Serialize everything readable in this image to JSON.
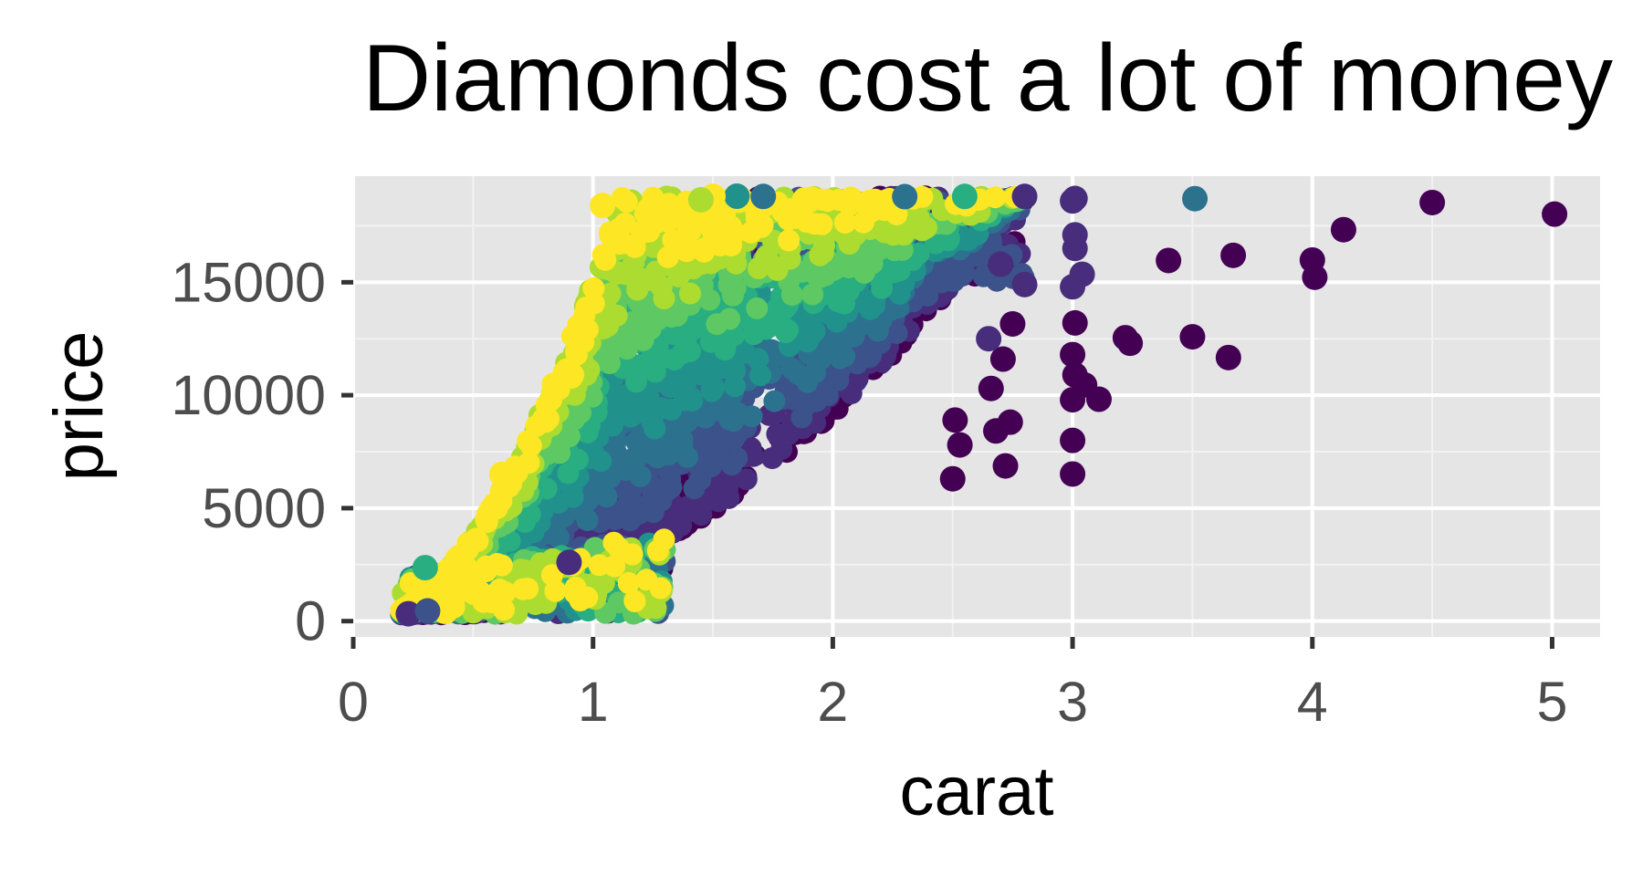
{
  "chart_data": {
    "type": "scatter",
    "title": "Diamonds cost a lot of money",
    "xlabel": "carat",
    "ylabel": "price",
    "xlim": [
      0,
      5.2
    ],
    "ylim": [
      -700,
      19700
    ],
    "x_ticks": [
      0,
      1,
      2,
      3,
      4,
      5
    ],
    "y_ticks": [
      0,
      5000,
      10000,
      15000
    ],
    "x_tick_labels": [
      "0",
      "1",
      "2",
      "3",
      "4",
      "5"
    ],
    "y_tick_labels": [
      "0",
      "5000",
      "10000",
      "15000"
    ],
    "grid": true,
    "legend": "none",
    "background": "#e5e5e5",
    "palette": [
      "#440154",
      "#472d7b",
      "#3b528b",
      "#2c728e",
      "#21918c",
      "#28ae80",
      "#5ec962",
      "#addc30",
      "#fde725"
    ],
    "points": [
      {
        "x": 5.01,
        "y": 18018,
        "c": 0
      },
      {
        "x": 4.5,
        "y": 18531,
        "c": 0
      },
      {
        "x": 4.13,
        "y": 17329,
        "c": 0
      },
      {
        "x": 4.01,
        "y": 15223,
        "c": 0
      },
      {
        "x": 4.0,
        "y": 15984,
        "c": 0
      },
      {
        "x": 3.67,
        "y": 16193,
        "c": 0
      },
      {
        "x": 3.65,
        "y": 11668,
        "c": 0
      },
      {
        "x": 3.5,
        "y": 12587,
        "c": 0
      },
      {
        "x": 3.51,
        "y": 18701,
        "c": 3
      },
      {
        "x": 3.4,
        "y": 15964,
        "c": 0
      },
      {
        "x": 3.24,
        "y": 12300,
        "c": 0
      },
      {
        "x": 3.22,
        "y": 12545,
        "c": 0
      },
      {
        "x": 3.11,
        "y": 9823,
        "c": 0
      },
      {
        "x": 3.05,
        "y": 10453,
        "c": 0
      },
      {
        "x": 3.04,
        "y": 15354,
        "c": 1
      },
      {
        "x": 3.01,
        "y": 18710,
        "c": 1
      },
      {
        "x": 3.0,
        "y": 18600,
        "c": 1
      },
      {
        "x": 3.01,
        "y": 16500,
        "c": 1
      },
      {
        "x": 3.0,
        "y": 14800,
        "c": 1
      },
      {
        "x": 3.01,
        "y": 13200,
        "c": 0
      },
      {
        "x": 3.0,
        "y": 11800,
        "c": 0
      },
      {
        "x": 3.01,
        "y": 10900,
        "c": 0
      },
      {
        "x": 3.0,
        "y": 8000,
        "c": 0
      },
      {
        "x": 3.0,
        "y": 6512,
        "c": 0
      },
      {
        "x": 3.01,
        "y": 17100,
        "c": 1
      },
      {
        "x": 3.0,
        "y": 9800,
        "c": 0
      },
      {
        "x": 2.8,
        "y": 18800,
        "c": 1
      },
      {
        "x": 2.75,
        "y": 13156,
        "c": 0
      },
      {
        "x": 2.74,
        "y": 8807,
        "c": 0
      },
      {
        "x": 2.72,
        "y": 6870,
        "c": 0
      },
      {
        "x": 2.71,
        "y": 11600,
        "c": 0
      },
      {
        "x": 2.68,
        "y": 8419,
        "c": 0
      },
      {
        "x": 2.66,
        "y": 10300,
        "c": 0
      },
      {
        "x": 2.5,
        "y": 6300,
        "c": 0
      },
      {
        "x": 2.51,
        "y": 8900,
        "c": 0
      },
      {
        "x": 2.53,
        "y": 7800,
        "c": 0
      },
      {
        "x": 2.8,
        "y": 14900,
        "c": 1
      },
      {
        "x": 2.7,
        "y": 15800,
        "c": 1
      },
      {
        "x": 2.65,
        "y": 12500,
        "c": 1
      },
      {
        "x": 2.55,
        "y": 18800,
        "c": 5
      },
      {
        "x": 2.3,
        "y": 18790,
        "c": 3
      },
      {
        "x": 1.71,
        "y": 18800,
        "c": 3
      },
      {
        "x": 1.6,
        "y": 18810,
        "c": 4
      },
      {
        "x": 1.5,
        "y": 18806,
        "c": 8
      },
      {
        "x": 1.45,
        "y": 18650,
        "c": 7
      },
      {
        "x": 1.04,
        "y": 18400,
        "c": 8
      },
      {
        "x": 0.62,
        "y": 6500,
        "c": 8
      },
      {
        "x": 0.3,
        "y": 2366,
        "c": 5
      },
      {
        "x": 0.23,
        "y": 326,
        "c": 1
      },
      {
        "x": 0.31,
        "y": 450,
        "c": 2
      },
      {
        "x": 0.9,
        "y": 2600,
        "c": 1
      }
    ]
  }
}
